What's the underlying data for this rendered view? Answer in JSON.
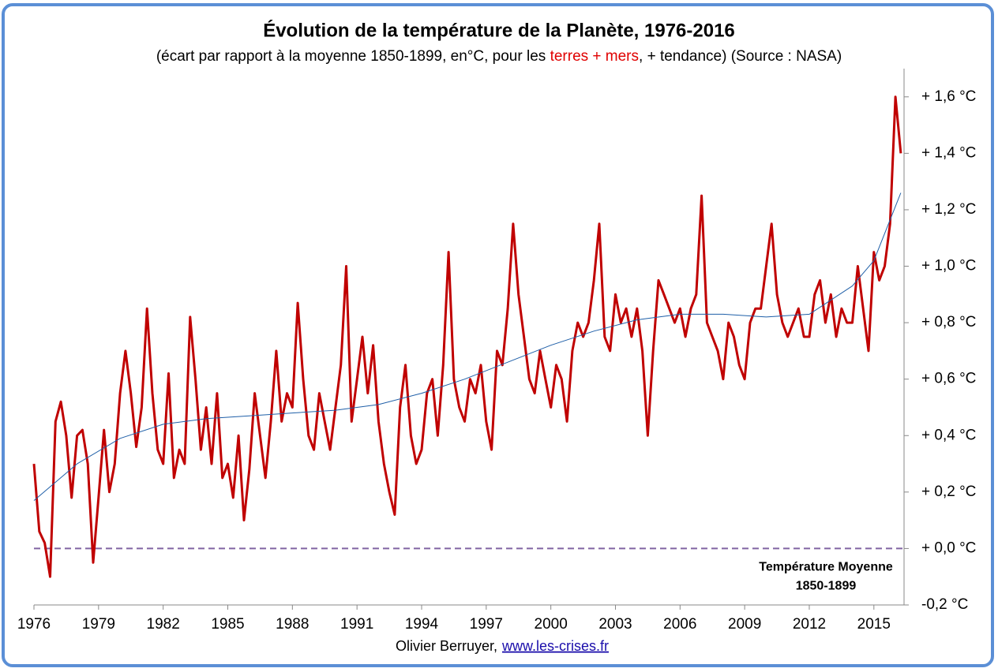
{
  "chart_data": {
    "type": "line",
    "title": "Évolution de la température de la Planète, 1976-2016",
    "subtitle_parts": [
      {
        "text": "(écart par rapport à la moyenne 1850-1899, en°C, pour les ",
        "color": "#000000"
      },
      {
        "text": "terres + mers",
        "color": "#e00000"
      },
      {
        "text": ", + tendance) (Source : NASA)",
        "color": "#000000"
      }
    ],
    "xlim": [
      1976,
      2016.4
    ],
    "xticks": [
      1976,
      1979,
      1982,
      1985,
      1988,
      1991,
      1994,
      1997,
      2000,
      2003,
      2006,
      2009,
      2012,
      2015
    ],
    "ylim": [
      -0.2,
      1.7
    ],
    "yticks": [
      {
        "value": -0.2,
        "label": "-0,2 °C"
      },
      {
        "value": 0,
        "label": "+ 0,0 °C"
      },
      {
        "value": 0.2,
        "label": "+ 0,2 °C"
      },
      {
        "value": 0.4,
        "label": "+ 0,4 °C"
      },
      {
        "value": 0.6,
        "label": "+ 0,6 °C"
      },
      {
        "value": 0.8,
        "label": "+ 0,8 °C"
      },
      {
        "value": 1.0,
        "label": "+ 1,0 °C"
      },
      {
        "value": 1.2,
        "label": "+ 1,2 °C"
      },
      {
        "value": 1.4,
        "label": "+ 1,4 °C"
      },
      {
        "value": 1.6,
        "label": "+ 1,6 °C"
      }
    ],
    "negative_tick_color": "#e00000",
    "y_axis_side": "right",
    "series": [
      {
        "color": "#c00000",
        "width": 3,
        "x": [
          1976,
          1976.25,
          1976.5,
          1976.75,
          1977,
          1977.25,
          1977.5,
          1977.75,
          1978,
          1978.25,
          1978.5,
          1978.75,
          1979,
          1979.25,
          1979.5,
          1979.75,
          1980,
          1980.25,
          1980.5,
          1980.75,
          1981,
          1981.25,
          1981.5,
          1981.75,
          1982,
          1982.25,
          1982.5,
          1982.75,
          1983,
          1983.25,
          1983.5,
          1983.75,
          1984,
          1984.25,
          1984.5,
          1984.75,
          1985,
          1985.25,
          1985.5,
          1985.75,
          1986,
          1986.25,
          1986.5,
          1986.75,
          1987,
          1987.25,
          1987.5,
          1987.75,
          1988,
          1988.25,
          1988.5,
          1988.75,
          1989,
          1989.25,
          1989.5,
          1989.75,
          1990,
          1990.25,
          1990.5,
          1990.75,
          1991,
          1991.25,
          1991.5,
          1991.75,
          1992,
          1992.25,
          1992.5,
          1992.75,
          1993,
          1993.25,
          1993.5,
          1993.75,
          1994,
          1994.25,
          1994.5,
          1994.75,
          1995,
          1995.25,
          1995.5,
          1995.75,
          1996,
          1996.25,
          1996.5,
          1996.75,
          1997,
          1997.25,
          1997.5,
          1997.75,
          1998,
          1998.25,
          1998.5,
          1998.75,
          1999,
          1999.25,
          1999.5,
          1999.75,
          2000,
          2000.25,
          2000.5,
          2000.75,
          2001,
          2001.25,
          2001.5,
          2001.75,
          2002,
          2002.25,
          2002.5,
          2002.75,
          2003,
          2003.25,
          2003.5,
          2003.75,
          2004,
          2004.25,
          2004.5,
          2004.75,
          2005,
          2005.25,
          2005.5,
          2005.75,
          2006,
          2006.25,
          2006.5,
          2006.75,
          2007,
          2007.25,
          2007.5,
          2007.75,
          2008,
          2008.25,
          2008.5,
          2008.75,
          2009,
          2009.25,
          2009.5,
          2009.75,
          2010,
          2010.25,
          2010.5,
          2010.75,
          2011,
          2011.25,
          2011.5,
          2011.75,
          2012,
          2012.25,
          2012.5,
          2012.75,
          2013,
          2013.25,
          2013.5,
          2013.75,
          2014,
          2014.25,
          2014.5,
          2014.75,
          2015,
          2015.25,
          2015.5,
          2015.75,
          2016,
          2016.25
        ],
        "values": [
          0.3,
          0.06,
          0.02,
          -0.1,
          0.45,
          0.52,
          0.4,
          0.18,
          0.4,
          0.42,
          0.3,
          -0.05,
          0.18,
          0.42,
          0.2,
          0.3,
          0.55,
          0.7,
          0.55,
          0.36,
          0.5,
          0.85,
          0.55,
          0.35,
          0.3,
          0.62,
          0.25,
          0.35,
          0.3,
          0.82,
          0.6,
          0.35,
          0.5,
          0.3,
          0.55,
          0.25,
          0.3,
          0.18,
          0.4,
          0.1,
          0.28,
          0.55,
          0.4,
          0.25,
          0.45,
          0.7,
          0.45,
          0.55,
          0.5,
          0.87,
          0.6,
          0.4,
          0.35,
          0.55,
          0.45,
          0.35,
          0.5,
          0.65,
          1.0,
          0.45,
          0.6,
          0.75,
          0.55,
          0.72,
          0.45,
          0.3,
          0.2,
          0.12,
          0.5,
          0.65,
          0.4,
          0.3,
          0.35,
          0.55,
          0.6,
          0.4,
          0.65,
          1.05,
          0.6,
          0.5,
          0.45,
          0.6,
          0.55,
          0.65,
          0.45,
          0.35,
          0.7,
          0.65,
          0.85,
          1.15,
          0.9,
          0.75,
          0.6,
          0.55,
          0.7,
          0.6,
          0.5,
          0.65,
          0.6,
          0.45,
          0.7,
          0.8,
          0.75,
          0.8,
          0.95,
          1.15,
          0.75,
          0.7,
          0.9,
          0.8,
          0.85,
          0.75,
          0.85,
          0.7,
          0.4,
          0.7,
          0.95,
          0.9,
          0.85,
          0.8,
          0.85,
          0.75,
          0.85,
          0.9,
          1.25,
          0.8,
          0.75,
          0.7,
          0.6,
          0.8,
          0.75,
          0.65,
          0.6,
          0.8,
          0.85,
          0.85,
          1.0,
          1.15,
          0.9,
          0.8,
          0.75,
          0.8,
          0.85,
          0.75,
          0.75,
          0.9,
          0.95,
          0.8,
          0.9,
          0.75,
          0.85,
          0.8,
          0.8,
          1.0,
          0.85,
          0.7,
          1.05,
          0.95,
          1.0,
          1.15,
          1.6,
          1.4
        ]
      },
      {
        "color": "#1f5fa8",
        "width": 1,
        "x": [
          1976,
          1978,
          1980,
          1982,
          1984,
          1986,
          1988,
          1990,
          1992,
          1994,
          1996,
          1998,
          2000,
          2002,
          2004,
          2006,
          2008,
          2010,
          2012,
          2014,
          2015,
          2016.25
        ],
        "values": [
          0.17,
          0.3,
          0.39,
          0.44,
          0.46,
          0.47,
          0.48,
          0.49,
          0.51,
          0.55,
          0.6,
          0.66,
          0.72,
          0.77,
          0.81,
          0.83,
          0.83,
          0.82,
          0.83,
          0.93,
          1.02,
          1.26
        ]
      }
    ],
    "reference_line": {
      "value": 0,
      "color": "#8064a2",
      "style": "dashed",
      "label": [
        "Température Moyenne",
        "1850-1899"
      ]
    },
    "credit": "Olivier Berruyer,",
    "link": "www.les-crises.fr"
  }
}
